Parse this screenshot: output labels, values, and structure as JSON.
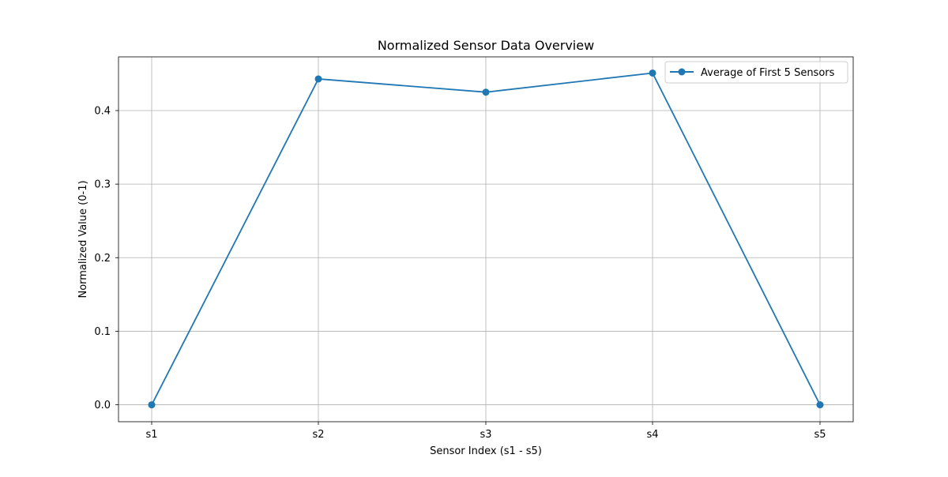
{
  "chart_data": {
    "type": "line",
    "title": "Normalized Sensor Data Overview",
    "xlabel": "Sensor Index (s1 - s5)",
    "ylabel": "Normalized Value (0-1)",
    "categories": [
      "s1",
      "s2",
      "s3",
      "s4",
      "s5"
    ],
    "ylim": [
      -0.023,
      0.473
    ],
    "yticks": [
      0.0,
      0.1,
      0.2,
      0.3,
      0.4
    ],
    "ytick_labels": [
      "0.0",
      "0.1",
      "0.2",
      "0.3",
      "0.4"
    ],
    "grid": true,
    "legend_position": "top-right",
    "series": [
      {
        "name": "Average of First 5 Sensors",
        "color": "#1f77b4",
        "marker": "circle",
        "values": [
          0.0,
          0.443,
          0.425,
          0.451,
          0.0
        ]
      }
    ]
  }
}
